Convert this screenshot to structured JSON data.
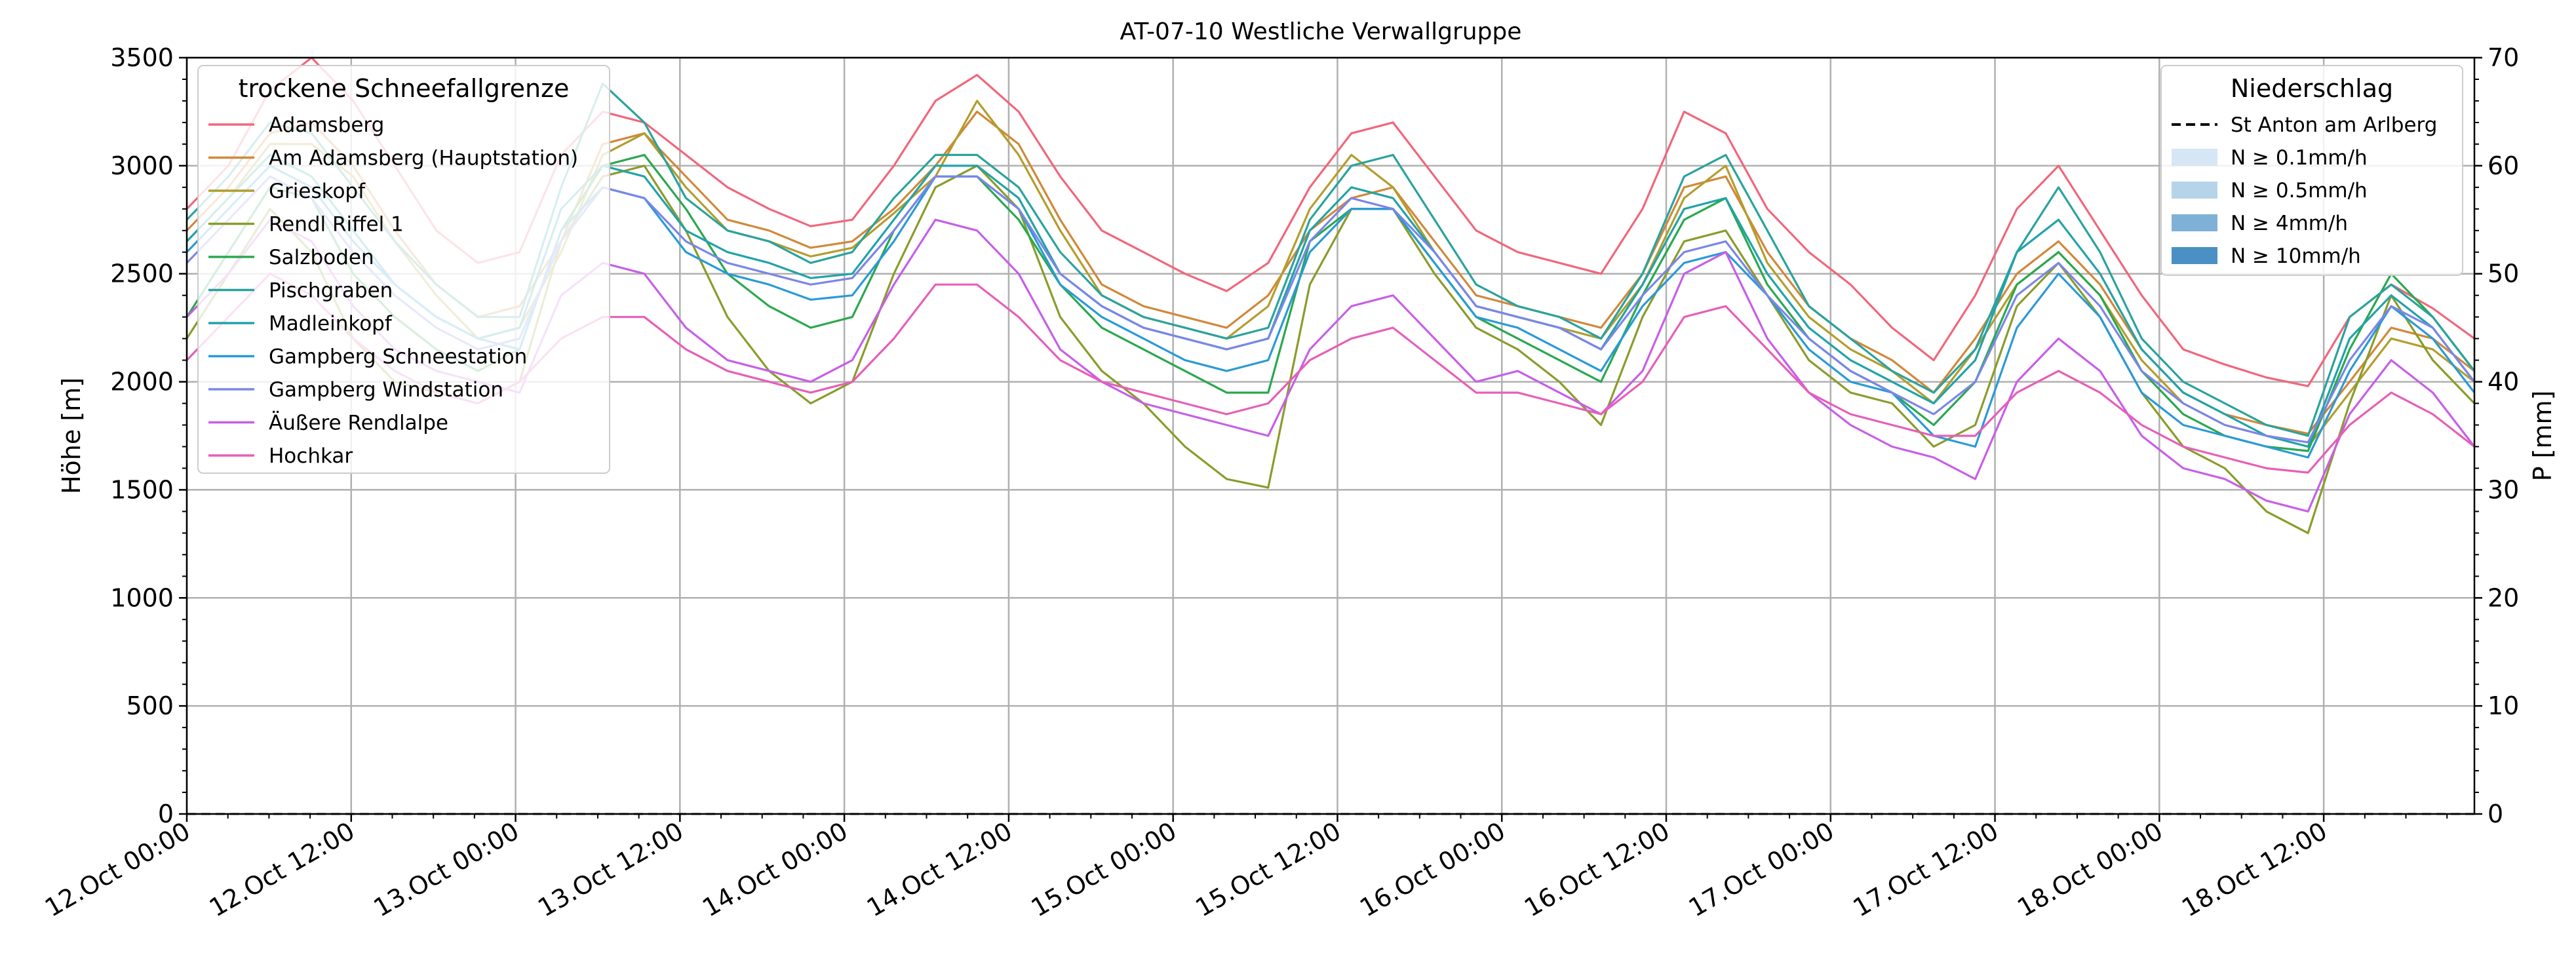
{
  "chart_data": {
    "type": "line",
    "title": "AT-07-10 Westliche Verwallgruppe",
    "ylabel": "Höhe [m]",
    "ylabel_right": "P [mm]",
    "ylim": [
      0,
      3500
    ],
    "ylim_right": [
      0,
      70
    ],
    "yticks": [
      0,
      500,
      1000,
      1500,
      2000,
      2500,
      3000,
      3500
    ],
    "yticks_right": [
      0,
      10,
      20,
      30,
      40,
      50,
      60,
      70
    ],
    "x_start": "2024-10-12T00:00",
    "x_end": "2024-10-18T23:00",
    "xtick_labels": [
      "12.Oct 00:00",
      "12.Oct 12:00",
      "13.Oct 00:00",
      "13.Oct 12:00",
      "14.Oct 00:00",
      "14.Oct 12:00",
      "15.Oct 00:00",
      "15.Oct 12:00",
      "16.Oct 00:00",
      "16.Oct 12:00",
      "17.Oct 00:00",
      "17.Oct 12:00",
      "18.Oct 00:00",
      "18.Oct 12:00"
    ],
    "grid": true,
    "legend_left": {
      "title": "trockene Schneefallgrenze",
      "placement": "upper-left"
    },
    "legend_right": {
      "title": "Niederschlag",
      "placement": "upper-right",
      "entries": [
        {
          "label": "St Anton am Arlberg",
          "style": "dashed-line",
          "color": "#000000"
        },
        {
          "label": "N ≥ 0.1mm/h",
          "style": "patch",
          "color": "#d6e6f4"
        },
        {
          "label": "N ≥ 0.5mm/h",
          "style": "patch",
          "color": "#b6d4e9"
        },
        {
          "label": "N ≥ 4mm/h",
          "style": "patch",
          "color": "#7fb1d7"
        },
        {
          "label": "N ≥ 10mm/h",
          "style": "patch",
          "color": "#4a90c4"
        }
      ]
    },
    "precipitation": {
      "station": "St Anton am Arlberg",
      "values_mm": [
        0,
        0,
        0,
        0,
        0,
        0,
        0,
        0,
        0,
        0,
        0,
        0,
        0,
        0
      ]
    },
    "series": [
      {
        "name": "Adamsberg",
        "color": "#f0677b",
        "values": [
          2800,
          3000,
          3350,
          3500,
          3300,
          3000,
          2700,
          2550,
          2600,
          3050,
          3250,
          3200,
          3050,
          2900,
          2800,
          2720,
          2750,
          3000,
          3300,
          3420,
          3250,
          2950,
          2700,
          2600,
          2500,
          2420,
          2550,
          2900,
          3150,
          3200,
          2950,
          2700,
          2600,
          2550,
          2500,
          2800,
          3250,
          3150,
          2800,
          2600,
          2450,
          2250,
          2100,
          2400,
          2800,
          3000,
          2700,
          2400,
          2150,
          2080,
          2020,
          1980,
          2300,
          2450,
          2340,
          2200
        ]
      },
      {
        "name": "Am Adamsberg (Hauptstation)",
        "color": "#d1883a",
        "values": [
          2700,
          2900,
          3150,
          3200,
          3000,
          2700,
          2450,
          2300,
          2350,
          2650,
          3100,
          3150,
          2950,
          2750,
          2700,
          2620,
          2650,
          2800,
          3000,
          3250,
          3100,
          2750,
          2450,
          2350,
          2300,
          2250,
          2400,
          2700,
          2850,
          2900,
          2650,
          2400,
          2350,
          2300,
          2250,
          2500,
          2900,
          2950,
          2600,
          2350,
          2200,
          2100,
          1950,
          2200,
          2500,
          2650,
          2450,
          2150,
          1950,
          1850,
          1800,
          1760,
          2000,
          2250,
          2200,
          2050
        ]
      },
      {
        "name": "Grieskopf",
        "color": "#b39d2e",
        "values": [
          2650,
          2850,
          3100,
          3100,
          2950,
          2650,
          2400,
          2200,
          2250,
          2600,
          3050,
          3150,
          2900,
          2700,
          2650,
          2580,
          2620,
          2780,
          2950,
          3300,
          3050,
          2700,
          2400,
          2300,
          2250,
          2200,
          2350,
          2800,
          3050,
          2900,
          2600,
          2350,
          2300,
          2250,
          2200,
          2450,
          2850,
          3000,
          2550,
          2300,
          2150,
          2050,
          1900,
          2150,
          2450,
          2600,
          2400,
          2100,
          1900,
          1800,
          1750,
          1700,
          1950,
          2200,
          2150,
          2000
        ]
      },
      {
        "name": "Rendl Riffel 1",
        "color": "#8a9c2b",
        "values": [
          2200,
          2500,
          2800,
          2600,
          2200,
          2000,
          1950,
          1900,
          2000,
          2650,
          2950,
          3000,
          2700,
          2300,
          2050,
          1900,
          2000,
          2500,
          2900,
          3000,
          2800,
          2300,
          2050,
          1900,
          1700,
          1550,
          1510,
          2450,
          2800,
          2800,
          2500,
          2250,
          2150,
          2000,
          1800,
          2300,
          2650,
          2700,
          2400,
          2100,
          1950,
          1900,
          1700,
          1800,
          2350,
          2550,
          2300,
          1950,
          1700,
          1600,
          1400,
          1300,
          1900,
          2400,
          2100,
          1900
        ]
      },
      {
        "name": "Salzboden",
        "color": "#2aa84f",
        "values": [
          2300,
          2600,
          2900,
          2850,
          2500,
          2300,
          2150,
          2050,
          2150,
          2700,
          3000,
          3050,
          2800,
          2500,
          2350,
          2250,
          2300,
          2700,
          2950,
          2950,
          2750,
          2450,
          2250,
          2150,
          2050,
          1950,
          1950,
          2650,
          2800,
          2800,
          2550,
          2300,
          2200,
          2100,
          2000,
          2400,
          2750,
          2850,
          2450,
          2200,
          2050,
          1950,
          1800,
          2000,
          2450,
          2600,
          2400,
          2050,
          1850,
          1750,
          1700,
          1680,
          2150,
          2500,
          2300,
          2050
        ]
      },
      {
        "name": "Pischgraben",
        "color": "#2aa39c",
        "values": [
          2750,
          2950,
          3200,
          3150,
          2900,
          2650,
          2450,
          2300,
          2300,
          2900,
          3380,
          3200,
          2850,
          2700,
          2650,
          2550,
          2600,
          2850,
          3050,
          3050,
          2900,
          2600,
          2400,
          2300,
          2250,
          2200,
          2250,
          2750,
          3000,
          3050,
          2750,
          2450,
          2350,
          2300,
          2200,
          2500,
          2950,
          3050,
          2700,
          2350,
          2200,
          2050,
          1950,
          2150,
          2600,
          2900,
          2600,
          2200,
          2000,
          1900,
          1800,
          1750,
          2300,
          2450,
          2300,
          2050
        ]
      },
      {
        "name": "Madleinkopf",
        "color": "#21a3a8",
        "values": [
          2650,
          2850,
          3050,
          2950,
          2700,
          2450,
          2300,
          2200,
          2250,
          2800,
          3000,
          2950,
          2700,
          2600,
          2550,
          2480,
          2500,
          2750,
          3000,
          3000,
          2850,
          2500,
          2350,
          2250,
          2200,
          2150,
          2200,
          2700,
          2900,
          2850,
          2600,
          2350,
          2300,
          2250,
          2150,
          2450,
          2800,
          2850,
          2500,
          2250,
          2100,
          2000,
          1900,
          2100,
          2600,
          2750,
          2500,
          2150,
          1950,
          1850,
          1750,
          1700,
          2200,
          2400,
          2250,
          2000
        ]
      },
      {
        "name": "Gampberg Schneestation",
        "color": "#2a9ad6",
        "values": [
          2600,
          2800,
          3000,
          2900,
          2650,
          2450,
          2300,
          2200,
          2150,
          2700,
          2900,
          2850,
          2600,
          2500,
          2450,
          2380,
          2400,
          2650,
          2950,
          2950,
          2800,
          2450,
          2300,
          2200,
          2100,
          2050,
          2100,
          2600,
          2800,
          2800,
          2550,
          2300,
          2250,
          2150,
          2050,
          2350,
          2550,
          2600,
          2400,
          2150,
          2000,
          1950,
          1750,
          1700,
          2250,
          2500,
          2300,
          1950,
          1800,
          1750,
          1700,
          1650,
          2050,
          2350,
          2200,
          1950
        ]
      },
      {
        "name": "Gampberg Windstation",
        "color": "#7b86e8",
        "values": [
          2550,
          2750,
          2950,
          2850,
          2600,
          2400,
          2250,
          2150,
          2200,
          2650,
          2900,
          2850,
          2650,
          2550,
          2500,
          2450,
          2480,
          2700,
          2950,
          2950,
          2800,
          2500,
          2350,
          2250,
          2200,
          2150,
          2200,
          2650,
          2850,
          2800,
          2600,
          2350,
          2300,
          2250,
          2150,
          2400,
          2600,
          2650,
          2400,
          2200,
          2050,
          1950,
          1850,
          2000,
          2400,
          2550,
          2350,
          2050,
          1900,
          1800,
          1750,
          1720,
          2100,
          2350,
          2250,
          2000
        ]
      },
      {
        "name": "Äußere Rendlalpe",
        "color": "#c75fe8",
        "values": [
          2300,
          2500,
          2750,
          2650,
          2350,
          2150,
          2050,
          2000,
          1950,
          2400,
          2550,
          2500,
          2250,
          2100,
          2050,
          2000,
          2100,
          2450,
          2750,
          2700,
          2500,
          2150,
          2000,
          1900,
          1850,
          1800,
          1750,
          2150,
          2350,
          2400,
          2200,
          2000,
          2050,
          1950,
          1850,
          2050,
          2500,
          2600,
          2200,
          1950,
          1800,
          1700,
          1650,
          1550,
          2000,
          2200,
          2050,
          1750,
          1600,
          1550,
          1450,
          1400,
          1850,
          2100,
          1950,
          1700
        ]
      },
      {
        "name": "Hochkar",
        "color": "#e65fb8",
        "values": [
          2100,
          2300,
          2500,
          2400,
          2200,
          2050,
          1950,
          1900,
          2000,
          2200,
          2300,
          2300,
          2150,
          2050,
          2000,
          1950,
          2000,
          2200,
          2450,
          2450,
          2300,
          2100,
          2000,
          1950,
          1900,
          1850,
          1900,
          2100,
          2200,
          2250,
          2100,
          1950,
          1950,
          1900,
          1850,
          2000,
          2300,
          2350,
          2150,
          1950,
          1850,
          1800,
          1750,
          1750,
          1950,
          2050,
          1950,
          1800,
          1700,
          1650,
          1600,
          1580,
          1800,
          1950,
          1850,
          1700
        ]
      }
    ]
  }
}
